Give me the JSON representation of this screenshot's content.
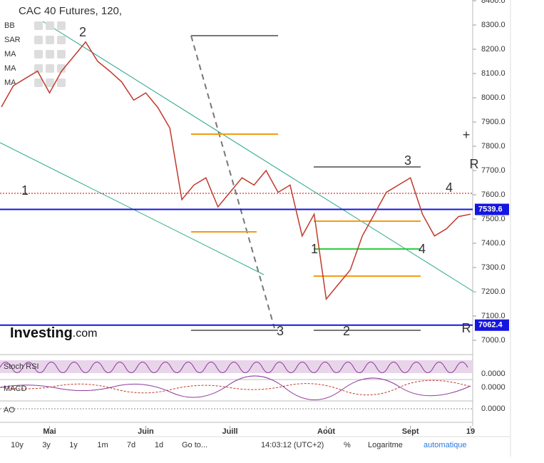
{
  "header": {
    "title": "CAC 40 Futures, 120,",
    "indicators": [
      "BB",
      "SAR",
      "MA",
      "MA",
      "MA"
    ]
  },
  "chart_data": {
    "type": "line",
    "categories": [
      null,
      null,
      null,
      null,
      "Mai",
      null,
      null,
      null,
      null,
      null,
      null,
      null,
      "Juin",
      null,
      null,
      null,
      null,
      null,
      null,
      "Juill",
      null,
      null,
      null,
      null,
      null,
      null,
      null,
      "Août",
      null,
      null,
      null,
      null,
      null,
      null,
      "Sept",
      null,
      null,
      null,
      null,
      "19"
    ],
    "values": [
      7962,
      8050,
      8080,
      8110,
      8020,
      8110,
      8170,
      8230,
      8150,
      8110,
      8065,
      7990,
      8020,
      7960,
      7875,
      7580,
      7640,
      7670,
      7550,
      7610,
      7670,
      7640,
      7700,
      7610,
      7640,
      7430,
      7520,
      7170,
      7230,
      7290,
      7430,
      7520,
      7610,
      7640,
      7670,
      7520,
      7430,
      7460,
      7510,
      7520
    ],
    "color": "#c0392b",
    "ylim": [
      6947,
      8403
    ],
    "yticks": [
      {
        "value": 7000,
        "label": "7000.0"
      },
      {
        "value": 7100,
        "label": "7100.0"
      },
      {
        "value": 7200,
        "label": "7200.0"
      },
      {
        "value": 7300,
        "label": "7300.0"
      },
      {
        "value": 7400,
        "label": "7400.0"
      },
      {
        "value": 7500,
        "label": "7500.0"
      },
      {
        "value": 7600,
        "label": "7600.0"
      },
      {
        "value": 7700,
        "label": "7700.0"
      },
      {
        "value": 7800,
        "label": "7800.0"
      },
      {
        "value": 7900,
        "label": "7900.0"
      },
      {
        "value": 8000,
        "label": "8000.0"
      },
      {
        "value": 8100,
        "label": "8100.0"
      },
      {
        "value": 8200,
        "label": "8200.0"
      },
      {
        "value": 8300,
        "label": "8300.0"
      },
      {
        "value": 8400,
        "label": "8400.0"
      }
    ],
    "levels": [
      {
        "value": 7539.6,
        "color": "#1515e0"
      },
      {
        "value": 7062.4,
        "color": "#1515e0"
      }
    ],
    "annotations": [
      "2",
      "1",
      "3",
      "1",
      "2",
      "3",
      "4",
      "4",
      "R",
      "R",
      "+"
    ],
    "panels": [
      {
        "name": "Stoch RSI",
        "tick": "0.0000"
      },
      {
        "name": "MACD",
        "tick": "0.0000"
      },
      {
        "name": "AO",
        "tick": "0.0000"
      }
    ]
  },
  "logo": {
    "brand": "Investing",
    "suffix": ".com"
  },
  "toolbar": {
    "ranges": [
      "10y",
      "3y",
      "1y",
      "1m",
      "7d",
      "1d"
    ],
    "goto": "Go to...",
    "time": "14:03:12 (UTC+2)",
    "percent": "%",
    "log": "Logaritme",
    "auto": "automatique"
  }
}
